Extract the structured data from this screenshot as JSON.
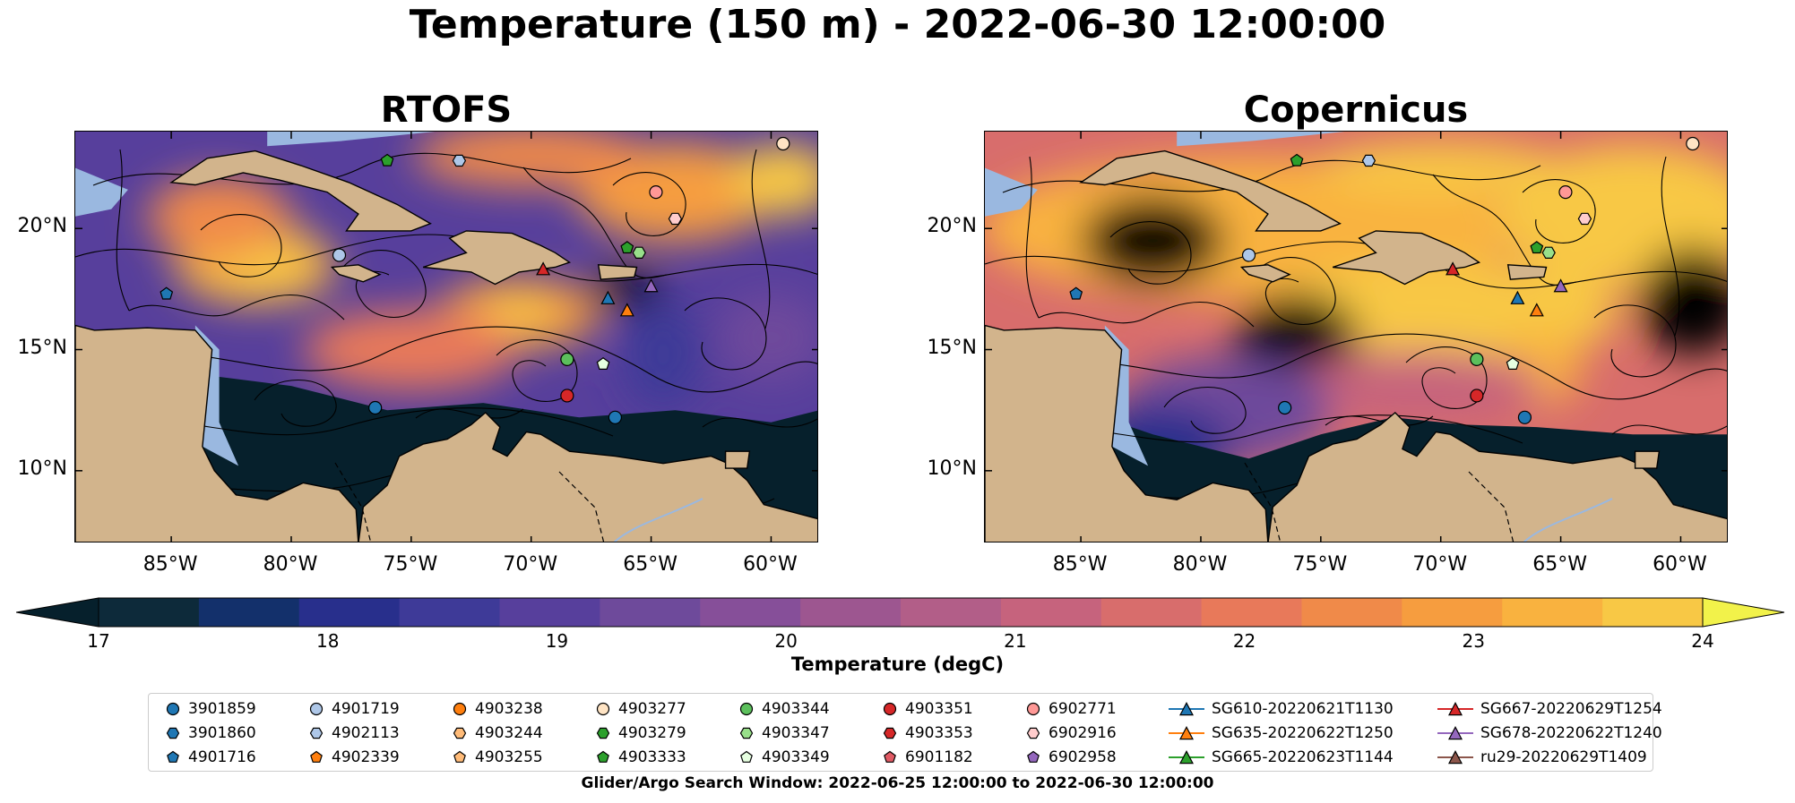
{
  "title": "Temperature (150 m) - 2022-06-30 12:00:00",
  "panels": [
    {
      "title": "RTOFS",
      "variant": "rtofs"
    },
    {
      "title": "Copernicus",
      "variant": "copernicus"
    }
  ],
  "map": {
    "lon_range": [
      -89,
      -58
    ],
    "lat_range": [
      7,
      24
    ],
    "lat_ticks": [
      {
        "value": 20,
        "label": "20°N"
      },
      {
        "value": 15,
        "label": "15°N"
      },
      {
        "value": 10,
        "label": "10°N"
      }
    ],
    "lon_ticks": [
      {
        "value": -85,
        "label": "85°W"
      },
      {
        "value": -80,
        "label": "80°W"
      },
      {
        "value": -75,
        "label": "75°W"
      },
      {
        "value": -70,
        "label": "70°W"
      },
      {
        "value": -65,
        "label": "65°W"
      },
      {
        "value": -60,
        "label": "60°W"
      }
    ],
    "land_color": "#d2b48c",
    "shelf_color": "#9ab8e0"
  },
  "colorbar": {
    "label": "Temperature (degC)",
    "range": [
      17,
      24
    ],
    "extend": "both",
    "ticks": [
      {
        "value": 17,
        "label": "17"
      },
      {
        "value": 18,
        "label": "18"
      },
      {
        "value": 19,
        "label": "19"
      },
      {
        "value": 20,
        "label": "20"
      },
      {
        "value": 21,
        "label": "21"
      },
      {
        "value": 22,
        "label": "22"
      },
      {
        "value": 23,
        "label": "23"
      },
      {
        "value": 24,
        "label": "24"
      }
    ],
    "colors": [
      "#0d2a3a",
      "#13306b",
      "#282f8c",
      "#3e3a98",
      "#573f9c",
      "#6e4a9b",
      "#864f99",
      "#9d5690",
      "#b25e88",
      "#c6637d",
      "#d86d6c",
      "#e8795a",
      "#f08a49",
      "#f69d3f",
      "#f9b23f",
      "#f8c845"
    ],
    "under_color": "#06202c",
    "over_color": "#f2f24a"
  },
  "legend": {
    "items": [
      {
        "label": "3901859",
        "marker": "circle",
        "color": "#1f77b4"
      },
      {
        "label": "3901860",
        "marker": "hexagon",
        "color": "#1f77b4"
      },
      {
        "label": "4901716",
        "marker": "pentagon",
        "color": "#1f77b4"
      },
      {
        "label": "4901719",
        "marker": "circle",
        "color": "#aec7e8"
      },
      {
        "label": "4902113",
        "marker": "hexagon",
        "color": "#aec7e8"
      },
      {
        "label": "4902339",
        "marker": "pentagon",
        "color": "#ff7f0e"
      },
      {
        "label": "4903238",
        "marker": "circle",
        "color": "#ff7f0e"
      },
      {
        "label": "4903244",
        "marker": "hexagon",
        "color": "#ffbb78"
      },
      {
        "label": "4903255",
        "marker": "pentagon",
        "color": "#ffbb78"
      },
      {
        "label": "4903277",
        "marker": "circle",
        "color": "#ffe4c4"
      },
      {
        "label": "4903279",
        "marker": "hexagon",
        "color": "#2ca02c"
      },
      {
        "label": "4903333",
        "marker": "pentagon",
        "color": "#2ca02c"
      },
      {
        "label": "4903344",
        "marker": "circle",
        "color": "#5cc05c"
      },
      {
        "label": "4903347",
        "marker": "hexagon",
        "color": "#98df8a"
      },
      {
        "label": "4903349",
        "marker": "pentagon",
        "color": "#e6ffe0"
      },
      {
        "label": "4903351",
        "marker": "circle",
        "color": "#d62728"
      },
      {
        "label": "4903353",
        "marker": "hexagon",
        "color": "#d62728"
      },
      {
        "label": "6901182",
        "marker": "pentagon",
        "color": "#e05a64"
      },
      {
        "label": "6902771",
        "marker": "circle",
        "color": "#ff9896"
      },
      {
        "label": "6902916",
        "marker": "hexagon",
        "color": "#ffcccc"
      },
      {
        "label": "6902958",
        "marker": "pentagon",
        "color": "#9467bd"
      },
      {
        "label": "SG610-20220621T1130",
        "marker": "triangle-line",
        "color": "#1f77b4"
      },
      {
        "label": "SG635-20220622T1250",
        "marker": "triangle-line",
        "color": "#ff7f0e"
      },
      {
        "label": "SG665-20220623T1144",
        "marker": "triangle-line",
        "color": "#2ca02c"
      },
      {
        "label": "SG667-20220629T1254",
        "marker": "triangle-line",
        "color": "#d62728"
      },
      {
        "label": "SG678-20220622T1240",
        "marker": "triangle-line",
        "color": "#9467bd"
      },
      {
        "label": "ru29-20220629T1409",
        "marker": "triangle-line",
        "color": "#8c564b"
      }
    ]
  },
  "search_window": "Glider/Argo Search Window: 2022-06-25 12:00:00 to 2022-06-30 12:00:00",
  "observations": [
    {
      "lon": -76.5,
      "lat": 12.6,
      "legend_index": 0
    },
    {
      "lon": -66.5,
      "lat": 12.2,
      "legend_index": 0
    },
    {
      "lon": -85.2,
      "lat": 17.3,
      "legend_index": 2
    },
    {
      "lon": -78.0,
      "lat": 18.9,
      "legend_index": 3
    },
    {
      "lon": -73.0,
      "lat": 22.8,
      "legend_index": 4
    },
    {
      "lon": -59.5,
      "lat": 23.5,
      "legend_index": 9
    },
    {
      "lon": -76.0,
      "lat": 22.8,
      "legend_index": 11
    },
    {
      "lon": -68.5,
      "lat": 14.6,
      "legend_index": 12
    },
    {
      "lon": -65.5,
      "lat": 19.0,
      "legend_index": 13
    },
    {
      "lon": -66.0,
      "lat": 19.2,
      "legend_index": 11
    },
    {
      "lon": -67.0,
      "lat": 14.4,
      "legend_index": 14
    },
    {
      "lon": -68.5,
      "lat": 13.1,
      "legend_index": 15
    },
    {
      "lon": -64.8,
      "lat": 21.5,
      "legend_index": 18
    },
    {
      "lon": -64.0,
      "lat": 20.4,
      "legend_index": 19
    },
    {
      "lon": -66.8,
      "lat": 17.1,
      "legend_index": 21
    },
    {
      "lon": -66.0,
      "lat": 16.6,
      "legend_index": 22
    },
    {
      "lon": -69.5,
      "lat": 18.3,
      "legend_index": 24
    },
    {
      "lon": -65.0,
      "lat": 17.6,
      "legend_index": 25
    }
  ]
}
